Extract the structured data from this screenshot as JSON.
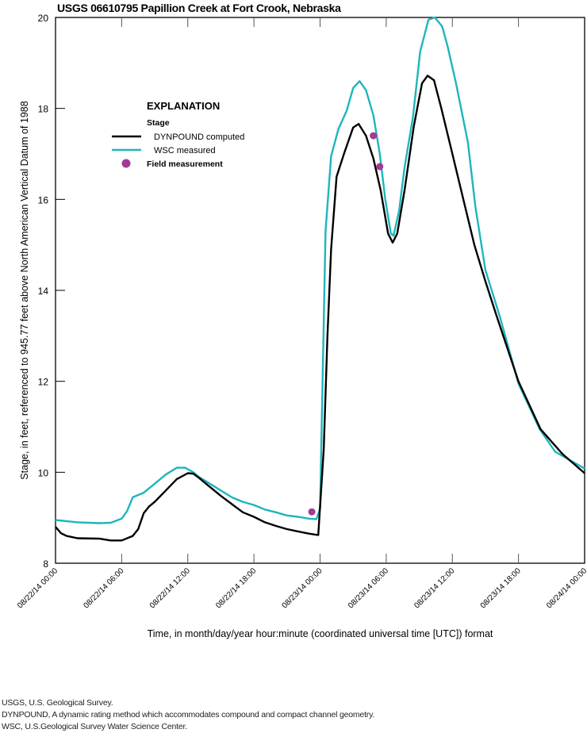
{
  "chart_data": {
    "type": "line",
    "title": "USGS 06610795 Papillion Creek at Fort Crook, Nebraska",
    "xlabel": "Time, in month/day/year hour:minute (coordinated universal time [UTC]) format",
    "ylabel": "Stage, in feet, referenced to 945.77 feet above North American Vertical Datum of 1988",
    "xlim": [
      "2014-08-22T00:00",
      "2014-08-24T00:00"
    ],
    "ylim": [
      8,
      20
    ],
    "yticks": [
      8,
      10,
      12,
      14,
      16,
      18,
      20
    ],
    "xticks": [
      "08/22/14 00:00",
      "08/22/14 06:00",
      "08/22/14 12:00",
      "08/22/14 18:00",
      "08/23/14 00:00",
      "08/23/14 06:00",
      "08/23/14 12:00",
      "08/23/14 18:00",
      "08/24/14 00:00"
    ],
    "grid": false,
    "legend": {
      "placement": "top-left",
      "heading": "EXPLANATION",
      "subheading": "Stage",
      "entries": [
        "DYNPOUND computed",
        "WSC measured",
        "Field measurement"
      ]
    },
    "colors": {
      "dynpound": "#000000",
      "wsc": "#1fb5bd",
      "field": "#a23a96"
    },
    "series": [
      {
        "name": "DYNPOUND computed",
        "points": [
          [
            "2014-08-22T00:00",
            8.8
          ],
          [
            "2014-08-22T00:30",
            8.66
          ],
          [
            "2014-08-22T01:00",
            8.6
          ],
          [
            "2014-08-22T02:00",
            8.55
          ],
          [
            "2014-08-22T04:00",
            8.54
          ],
          [
            "2014-08-22T05:00",
            8.5
          ],
          [
            "2014-08-22T06:00",
            8.5
          ],
          [
            "2014-08-22T07:00",
            8.6
          ],
          [
            "2014-08-22T07:30",
            8.75
          ],
          [
            "2014-08-22T08:00",
            9.1
          ],
          [
            "2014-08-22T08:30",
            9.25
          ],
          [
            "2014-08-22T09:00",
            9.35
          ],
          [
            "2014-08-22T10:00",
            9.6
          ],
          [
            "2014-08-22T11:00",
            9.85
          ],
          [
            "2014-08-22T12:00",
            9.98
          ],
          [
            "2014-08-22T12:30",
            9.97
          ],
          [
            "2014-08-22T13:00",
            9.88
          ],
          [
            "2014-08-22T14:00",
            9.68
          ],
          [
            "2014-08-22T15:00",
            9.48
          ],
          [
            "2014-08-22T16:00",
            9.3
          ],
          [
            "2014-08-22T17:00",
            9.12
          ],
          [
            "2014-08-22T18:00",
            9.02
          ],
          [
            "2014-08-22T19:00",
            8.9
          ],
          [
            "2014-08-22T20:00",
            8.82
          ],
          [
            "2014-08-22T21:00",
            8.75
          ],
          [
            "2014-08-22T22:00",
            8.7
          ],
          [
            "2014-08-22T23:00",
            8.65
          ],
          [
            "2014-08-22T23:50",
            8.62
          ],
          [
            "2014-08-23T00:20",
            10.5
          ],
          [
            "2014-08-23T00:40",
            13.0
          ],
          [
            "2014-08-23T01:00",
            14.9
          ],
          [
            "2014-08-23T01:30",
            16.5
          ],
          [
            "2014-08-23T02:10",
            17.0
          ],
          [
            "2014-08-23T02:40",
            17.35
          ],
          [
            "2014-08-23T03:00",
            17.58
          ],
          [
            "2014-08-23T03:30",
            17.66
          ],
          [
            "2014-08-23T04:10",
            17.4
          ],
          [
            "2014-08-23T04:50",
            16.9
          ],
          [
            "2014-08-23T05:30",
            16.2
          ],
          [
            "2014-08-23T06:10",
            15.25
          ],
          [
            "2014-08-23T06:35",
            15.05
          ],
          [
            "2014-08-23T07:00",
            15.25
          ],
          [
            "2014-08-23T07:40",
            16.2
          ],
          [
            "2014-08-23T08:30",
            17.6
          ],
          [
            "2014-08-23T09:15",
            18.55
          ],
          [
            "2014-08-23T09:45",
            18.72
          ],
          [
            "2014-08-23T10:20",
            18.62
          ],
          [
            "2014-08-23T11:00",
            18.0
          ],
          [
            "2014-08-23T12:00",
            17.0
          ],
          [
            "2014-08-23T13:00",
            16.0
          ],
          [
            "2014-08-23T14:00",
            15.0
          ],
          [
            "2014-08-23T15:00",
            14.2
          ],
          [
            "2014-08-23T16:00",
            13.45
          ],
          [
            "2014-08-23T18:00",
            12.0
          ],
          [
            "2014-08-23T20:00",
            10.95
          ],
          [
            "2014-08-23T22:00",
            10.4
          ],
          [
            "2014-08-24T00:00",
            9.98
          ]
        ]
      },
      {
        "name": "WSC measured",
        "points": [
          [
            "2014-08-22T00:00",
            8.95
          ],
          [
            "2014-08-22T02:00",
            8.9
          ],
          [
            "2014-08-22T04:00",
            8.88
          ],
          [
            "2014-08-22T05:00",
            8.89
          ],
          [
            "2014-08-22T06:00",
            8.98
          ],
          [
            "2014-08-22T06:30",
            9.15
          ],
          [
            "2014-08-22T07:00",
            9.45
          ],
          [
            "2014-08-22T08:00",
            9.55
          ],
          [
            "2014-08-22T09:00",
            9.75
          ],
          [
            "2014-08-22T10:00",
            9.95
          ],
          [
            "2014-08-22T11:00",
            10.1
          ],
          [
            "2014-08-22T11:45",
            10.1
          ],
          [
            "2014-08-22T12:30",
            10.0
          ],
          [
            "2014-08-22T13:00",
            9.9
          ],
          [
            "2014-08-22T14:00",
            9.75
          ],
          [
            "2014-08-22T15:00",
            9.6
          ],
          [
            "2014-08-22T16:00",
            9.45
          ],
          [
            "2014-08-22T17:00",
            9.35
          ],
          [
            "2014-08-22T18:00",
            9.28
          ],
          [
            "2014-08-22T19:00",
            9.18
          ],
          [
            "2014-08-22T20:00",
            9.12
          ],
          [
            "2014-08-22T21:00",
            9.05
          ],
          [
            "2014-08-22T22:00",
            9.02
          ],
          [
            "2014-08-22T23:00",
            8.98
          ],
          [
            "2014-08-22T23:40",
            8.97
          ],
          [
            "2014-08-23T00:00",
            9.2
          ],
          [
            "2014-08-23T00:30",
            15.3
          ],
          [
            "2014-08-23T01:00",
            16.95
          ],
          [
            "2014-08-23T01:40",
            17.55
          ],
          [
            "2014-08-23T02:25",
            17.95
          ],
          [
            "2014-08-23T03:00",
            18.45
          ],
          [
            "2014-08-23T03:35",
            18.6
          ],
          [
            "2014-08-23T04:10",
            18.4
          ],
          [
            "2014-08-23T04:50",
            17.85
          ],
          [
            "2014-08-23T05:25",
            17.0
          ],
          [
            "2014-08-23T05:55",
            16.0
          ],
          [
            "2014-08-23T06:25",
            15.25
          ],
          [
            "2014-08-23T06:40",
            15.2
          ],
          [
            "2014-08-23T07:10",
            15.75
          ],
          [
            "2014-08-23T07:40",
            16.7
          ],
          [
            "2014-08-23T08:25",
            17.8
          ],
          [
            "2014-08-23T09:05",
            19.25
          ],
          [
            "2014-08-23T09:50",
            19.95
          ],
          [
            "2014-08-23T10:25",
            20.0
          ],
          [
            "2014-08-23T11:05",
            19.8
          ],
          [
            "2014-08-23T11:35",
            19.35
          ],
          [
            "2014-08-23T12:20",
            18.55
          ],
          [
            "2014-08-23T13:25",
            17.25
          ],
          [
            "2014-08-23T14:05",
            15.85
          ],
          [
            "2014-08-23T15:00",
            14.45
          ],
          [
            "2014-08-23T16:20",
            13.4
          ],
          [
            "2014-08-23T18:00",
            11.95
          ],
          [
            "2014-08-23T19:55",
            10.95
          ],
          [
            "2014-08-23T21:20",
            10.45
          ],
          [
            "2014-08-24T00:00",
            10.08
          ]
        ]
      }
    ],
    "field_measurements": [
      [
        "2014-08-22T23:15",
        9.13
      ],
      [
        "2014-08-23T04:50",
        17.4
      ],
      [
        "2014-08-23T05:25",
        16.72
      ]
    ]
  },
  "footnotes": [
    "USGS, U.S. Geological Survey.",
    "DYNPOUND, A dynamic rating method which accommodates compound and compact channel geometry.",
    "WSC, U.S.Geological Survey Water Science Center."
  ]
}
